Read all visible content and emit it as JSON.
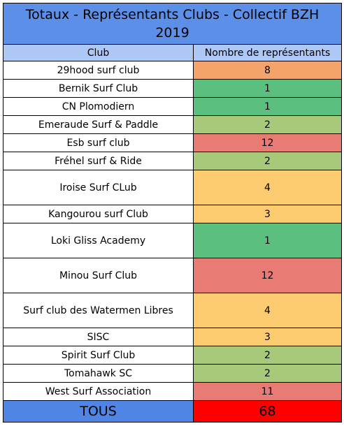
{
  "title_line1": "Totaux - Représentants Clubs - Collectif BZH",
  "title_line2": "2019",
  "headers": {
    "club": "Club",
    "count": "Nombre de représentants"
  },
  "rows": [
    {
      "club": "29hood surf club",
      "count": "8",
      "color": "#f4a46b"
    },
    {
      "club": "Bernik Surf Club",
      "count": "1",
      "color": "#5bbf80"
    },
    {
      "club": "CN Plomodiern",
      "count": "1",
      "color": "#5bbf80"
    },
    {
      "club": "Emeraude Surf & Paddle",
      "count": "2",
      "color": "#a9c97a"
    },
    {
      "club": "Esb surf club",
      "count": "12",
      "color": "#e87b74"
    },
    {
      "club": "Fréhel surf & Ride",
      "count": "2",
      "color": "#a9c97a"
    },
    {
      "club": "Iroise Surf CLub",
      "count": "4",
      "color": "#fdcb70"
    },
    {
      "club": "Kangourou surf Club",
      "count": "3",
      "color": "#fdcb70"
    },
    {
      "club": "Loki Gliss Academy",
      "count": "1",
      "color": "#5bbf80"
    },
    {
      "club": "Minou Surf Club",
      "count": "12",
      "color": "#e87b74"
    },
    {
      "club": "Surf club des Watermen Libres",
      "count": "4",
      "color": "#fdcb70"
    },
    {
      "club": "SISC",
      "count": "3",
      "color": "#fdcb70"
    },
    {
      "club": "Spirit Surf Club",
      "count": "2",
      "color": "#a9c97a"
    },
    {
      "club": "Tomahawk SC",
      "count": "2",
      "color": "#a9c97a"
    },
    {
      "club": "West Surf Association",
      "count": "11",
      "color": "#e87b74"
    }
  ],
  "total": {
    "label": "TOUS",
    "count": "68",
    "color": "#ff0000"
  }
}
